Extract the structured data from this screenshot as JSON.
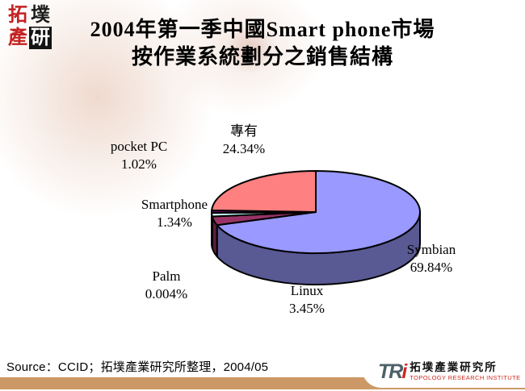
{
  "header": {
    "seal_logo_chars": [
      "拓",
      "墣",
      "產",
      "研"
    ],
    "title_line1": "2004年第一季中國Smart phone市場",
    "title_line2": "按作業系統劃分之銷售結構"
  },
  "chart_data": {
    "type": "pie",
    "three_d": true,
    "title": "2004年第一季中國Smart phone市場按作業系統劃分之銷售結構",
    "unit": "percent",
    "start_angle_deg": 0,
    "direction": "clockwise",
    "legend_position": "none",
    "labels_outside": true,
    "slices": [
      {
        "label": "Symbian",
        "value": 69.84,
        "pct_label": "69.84%",
        "color": "#9999FF"
      },
      {
        "label": "Linux",
        "value": 3.45,
        "pct_label": "3.45%",
        "color": "#993366"
      },
      {
        "label": "Palm",
        "value": 0.004,
        "pct_label": "0.004%",
        "color": "#FFFFCC"
      },
      {
        "label": "Smartphone",
        "value": 1.34,
        "pct_label": "1.34%",
        "color": "#CCFFFF"
      },
      {
        "label": "pocket PC",
        "value": 1.02,
        "pct_label": "1.02%",
        "color": "#660066"
      },
      {
        "label": "專有",
        "value": 24.34,
        "pct_label": "24.34%",
        "color": "#FF8080"
      }
    ]
  },
  "footer": {
    "source": "Source：CCID；拓墣產業研究所整理，2004/05",
    "tri_logo": {
      "acronym_tr": "TR",
      "acronym_i": "i",
      "name_cjk": "拓墣產業研究所",
      "name_en": "TOPOLOGY RESEARCH INSTITUTE"
    }
  },
  "colors": {
    "seal_red": "#c32222",
    "tri_slate": "#4d6069",
    "tri_red": "#cc2a22",
    "footer_bar_tan": "#cc9966",
    "pie_outline": "#000000"
  }
}
